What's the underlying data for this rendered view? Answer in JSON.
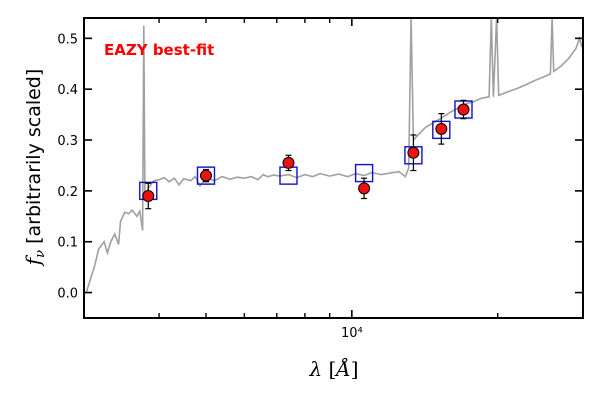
{
  "chart_data": {
    "type": "scatter",
    "title": "",
    "xlabel": "λ [Å]",
    "ylabel": "f_ν [arbitrarily scaled]",
    "xscale": "log",
    "xlim": [
      2800,
      30000
    ],
    "ylim": [
      -0.05,
      0.54
    ],
    "grid": false,
    "annotation": {
      "text": "EAZY best-fit",
      "color": "#ff0000"
    },
    "yticks": [
      {
        "value": 0.0,
        "label": "0.0"
      },
      {
        "value": 0.1,
        "label": "0.1"
      },
      {
        "value": 0.2,
        "label": "0.2"
      },
      {
        "value": 0.3,
        "label": "0.3"
      },
      {
        "value": 0.4,
        "label": "0.4"
      },
      {
        "value": 0.5,
        "label": "0.5"
      }
    ],
    "xticks_major": [
      {
        "value": 10000,
        "label": "10⁴"
      }
    ],
    "xticks_minor": [
      4000,
      5000,
      6000,
      7000,
      8000,
      9000,
      20000
    ],
    "colors": {
      "template": "#a0a0a0",
      "observed_fill": "#ee1111",
      "observed_edge": "#000000",
      "model_box": "#1010c8",
      "errorbar": "#000000"
    },
    "series": [
      {
        "kind": "model_template",
        "points": [
          [
            2830,
            0.0
          ],
          [
            2950,
            0.055
          ],
          [
            3000,
            0.085
          ],
          [
            3080,
            0.1
          ],
          [
            3130,
            0.078
          ],
          [
            3180,
            0.1
          ],
          [
            3240,
            0.115
          ],
          [
            3300,
            0.095
          ],
          [
            3330,
            0.14
          ],
          [
            3400,
            0.158
          ],
          [
            3460,
            0.155
          ],
          [
            3520,
            0.162
          ],
          [
            3600,
            0.15
          ],
          [
            3650,
            0.16
          ],
          [
            3700,
            0.122
          ],
          [
            3720,
            0.525
          ],
          [
            3740,
            0.19
          ],
          [
            3800,
            0.205
          ],
          [
            3900,
            0.22
          ],
          [
            4000,
            0.222
          ],
          [
            4100,
            0.226
          ],
          [
            4200,
            0.218
          ],
          [
            4300,
            0.225
          ],
          [
            4400,
            0.212
          ],
          [
            4500,
            0.224
          ],
          [
            4650,
            0.22
          ],
          [
            4750,
            0.228
          ],
          [
            4860,
            0.21
          ],
          [
            5000,
            0.226
          ],
          [
            5200,
            0.22
          ],
          [
            5400,
            0.228
          ],
          [
            5600,
            0.223
          ],
          [
            5800,
            0.227
          ],
          [
            6000,
            0.225
          ],
          [
            6200,
            0.228
          ],
          [
            6400,
            0.222
          ],
          [
            6563,
            0.232
          ],
          [
            6700,
            0.228
          ],
          [
            6900,
            0.231
          ],
          [
            7100,
            0.229
          ],
          [
            7400,
            0.232
          ],
          [
            7700,
            0.226
          ],
          [
            8000,
            0.232
          ],
          [
            8300,
            0.228
          ],
          [
            8600,
            0.234
          ],
          [
            9000,
            0.229
          ],
          [
            9400,
            0.233
          ],
          [
            9800,
            0.228
          ],
          [
            10200,
            0.234
          ],
          [
            10600,
            0.23
          ],
          [
            11000,
            0.236
          ],
          [
            11500,
            0.232
          ],
          [
            12000,
            0.235
          ],
          [
            12500,
            0.238
          ],
          [
            12900,
            0.228
          ],
          [
            13100,
            0.245
          ],
          [
            13250,
            0.54
          ],
          [
            13400,
            0.3
          ],
          [
            13700,
            0.31
          ],
          [
            14200,
            0.325
          ],
          [
            14800,
            0.335
          ],
          [
            15400,
            0.345
          ],
          [
            16000,
            0.355
          ],
          [
            16500,
            0.362
          ],
          [
            17000,
            0.37
          ],
          [
            17800,
            0.375
          ],
          [
            18500,
            0.382
          ],
          [
            19200,
            0.385
          ],
          [
            19400,
            0.54
          ],
          [
            19600,
            0.385
          ],
          [
            19900,
            0.54
          ],
          [
            20100,
            0.388
          ],
          [
            21000,
            0.395
          ],
          [
            22000,
            0.402
          ],
          [
            23000,
            0.41
          ],
          [
            24000,
            0.418
          ],
          [
            25000,
            0.425
          ],
          [
            25700,
            0.43
          ],
          [
            25900,
            0.54
          ],
          [
            26100,
            0.435
          ],
          [
            27000,
            0.445
          ],
          [
            28000,
            0.46
          ],
          [
            29000,
            0.48
          ],
          [
            29500,
            0.5
          ],
          [
            29800,
            0.485
          ],
          [
            30000,
            0.48
          ]
        ]
      },
      {
        "kind": "model_photometry",
        "points": [
          {
            "x": 3800,
            "y": 0.2
          },
          {
            "x": 5000,
            "y": 0.23
          },
          {
            "x": 7400,
            "y": 0.23
          },
          {
            "x": 10600,
            "y": 0.235
          },
          {
            "x": 13400,
            "y": 0.27
          },
          {
            "x": 15300,
            "y": 0.32
          },
          {
            "x": 17000,
            "y": 0.36
          }
        ]
      },
      {
        "kind": "observed_photometry",
        "points": [
          {
            "x": 3800,
            "y": 0.19,
            "err": 0.025
          },
          {
            "x": 5000,
            "y": 0.23,
            "err": 0.012
          },
          {
            "x": 7400,
            "y": 0.255,
            "err": 0.015
          },
          {
            "x": 10600,
            "y": 0.205,
            "err": 0.02
          },
          {
            "x": 13400,
            "y": 0.275,
            "err": 0.035
          },
          {
            "x": 15300,
            "y": 0.322,
            "err": 0.03
          },
          {
            "x": 17000,
            "y": 0.36,
            "err": 0.018
          }
        ]
      }
    ]
  }
}
